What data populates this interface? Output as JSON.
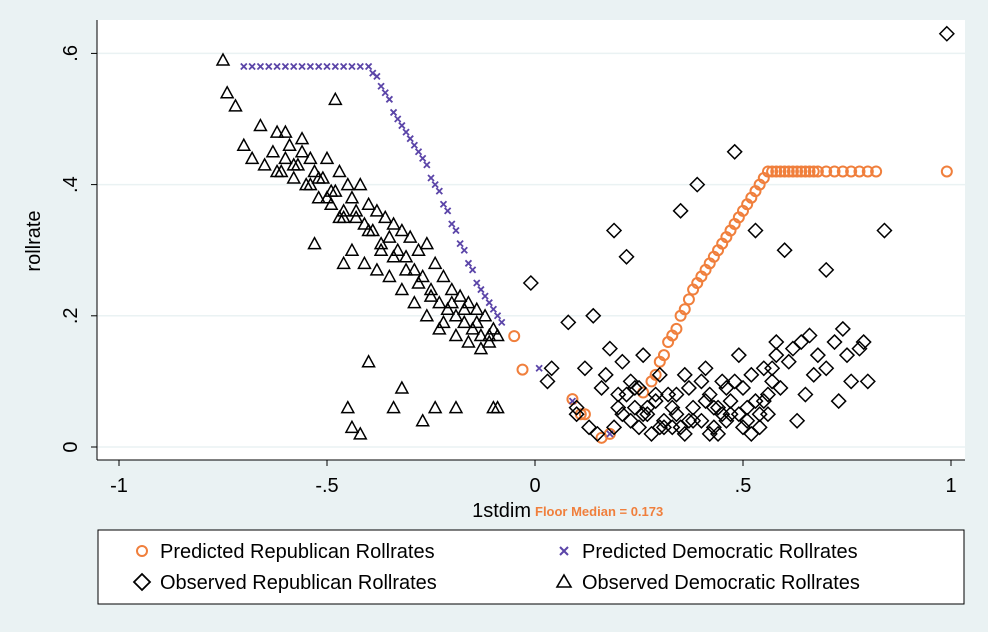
{
  "chart_data": {
    "type": "scatter",
    "xlabel": "1stdim",
    "ylabel": "rollrate",
    "xlim": [
      -1,
      1
    ],
    "ylim": [
      0,
      0.6
    ],
    "x_ticks": [
      -1,
      -0.5,
      0,
      0.5,
      1
    ],
    "x_tick_labels": [
      "-1",
      "-.5",
      "0",
      ".5",
      "1"
    ],
    "y_ticks": [
      0,
      0.2,
      0.4,
      0.6
    ],
    "y_tick_labels": [
      "0",
      ".2",
      ".4",
      ".6"
    ],
    "grid": true,
    "legend_position": "bottom",
    "annotation": {
      "text": "Floor Median = 0.173",
      "x": 0.173,
      "color": "#f07f3c"
    },
    "colors": {
      "republican_predicted": "#f07f3c",
      "democratic_predicted": "#5b45a8",
      "observed": "#000000",
      "background": "#eaf2f3",
      "plot_bg": "#ffffff"
    },
    "series": [
      {
        "name": "Predicted Republican Rollrates",
        "marker": "circle",
        "color": "#f07f3c",
        "x": [
          -0.05,
          -0.03,
          0.09,
          0.11,
          0.12,
          0.16,
          0.18,
          0.26,
          0.28,
          0.29,
          0.3,
          0.31,
          0.32,
          0.33,
          0.34,
          0.35,
          0.36,
          0.37,
          0.38,
          0.39,
          0.4,
          0.41,
          0.42,
          0.43,
          0.44,
          0.45,
          0.46,
          0.47,
          0.48,
          0.49,
          0.5,
          0.51,
          0.52,
          0.53,
          0.54,
          0.55,
          0.56,
          0.57,
          0.58,
          0.59,
          0.6,
          0.61,
          0.62,
          0.63,
          0.64,
          0.65,
          0.66,
          0.67,
          0.68,
          0.7,
          0.72,
          0.74,
          0.76,
          0.78,
          0.8,
          0.82,
          0.99
        ],
        "y": [
          0.169,
          0.118,
          0.073,
          0.05,
          0.05,
          0.014,
          0.02,
          0.083,
          0.1,
          0.11,
          0.13,
          0.14,
          0.16,
          0.17,
          0.18,
          0.2,
          0.21,
          0.225,
          0.24,
          0.25,
          0.26,
          0.27,
          0.28,
          0.29,
          0.3,
          0.31,
          0.32,
          0.33,
          0.34,
          0.35,
          0.36,
          0.37,
          0.38,
          0.39,
          0.4,
          0.41,
          0.42,
          0.42,
          0.42,
          0.42,
          0.42,
          0.42,
          0.42,
          0.42,
          0.42,
          0.42,
          0.42,
          0.42,
          0.42,
          0.42,
          0.42,
          0.42,
          0.42,
          0.42,
          0.42,
          0.42,
          0.42
        ]
      },
      {
        "name": "Predicted Democratic Rollrates",
        "marker": "x",
        "color": "#5b45a8",
        "x": [
          -0.7,
          -0.68,
          -0.66,
          -0.64,
          -0.62,
          -0.6,
          -0.58,
          -0.56,
          -0.54,
          -0.52,
          -0.5,
          -0.48,
          -0.46,
          -0.44,
          -0.42,
          -0.4,
          -0.39,
          -0.38,
          -0.37,
          -0.36,
          -0.35,
          -0.34,
          -0.33,
          -0.32,
          -0.31,
          -0.3,
          -0.29,
          -0.28,
          -0.27,
          -0.26,
          -0.25,
          -0.24,
          -0.23,
          -0.22,
          -0.21,
          -0.2,
          -0.19,
          -0.18,
          -0.17,
          -0.16,
          -0.15,
          -0.14,
          -0.13,
          -0.12,
          -0.11,
          -0.1,
          -0.09,
          -0.08,
          0.01,
          0.09,
          0.18
        ],
        "y": [
          0.58,
          0.58,
          0.58,
          0.58,
          0.58,
          0.58,
          0.58,
          0.58,
          0.58,
          0.58,
          0.58,
          0.58,
          0.58,
          0.58,
          0.58,
          0.58,
          0.57,
          0.565,
          0.55,
          0.54,
          0.53,
          0.51,
          0.5,
          0.49,
          0.48,
          0.47,
          0.46,
          0.45,
          0.44,
          0.43,
          0.41,
          0.4,
          0.39,
          0.37,
          0.36,
          0.34,
          0.33,
          0.31,
          0.3,
          0.28,
          0.27,
          0.25,
          0.24,
          0.23,
          0.22,
          0.21,
          0.2,
          0.19,
          0.12,
          0.07,
          0.02
        ]
      },
      {
        "name": "Observed Republican Rollrates",
        "marker": "diamond",
        "color": "#000000",
        "x": [
          -0.01,
          0.03,
          0.04,
          0.08,
          0.1,
          0.12,
          0.14,
          0.16,
          0.18,
          0.19,
          0.2,
          0.21,
          0.22,
          0.23,
          0.24,
          0.25,
          0.26,
          0.27,
          0.28,
          0.29,
          0.3,
          0.31,
          0.32,
          0.33,
          0.34,
          0.35,
          0.36,
          0.37,
          0.38,
          0.39,
          0.4,
          0.41,
          0.42,
          0.43,
          0.44,
          0.45,
          0.46,
          0.47,
          0.48,
          0.49,
          0.5,
          0.51,
          0.52,
          0.53,
          0.54,
          0.55,
          0.56,
          0.57,
          0.58,
          0.6,
          0.62,
          0.64,
          0.66,
          0.68,
          0.7,
          0.72,
          0.74,
          0.76,
          0.78,
          0.8,
          0.84,
          0.99,
          0.1,
          0.13,
          0.17,
          0.21,
          0.24,
          0.27,
          0.31,
          0.34,
          0.38,
          0.41,
          0.44,
          0.47,
          0.5,
          0.53,
          0.57,
          0.61,
          0.65,
          0.7,
          0.75,
          0.2,
          0.23,
          0.35,
          0.4,
          0.45,
          0.49,
          0.52,
          0.55,
          0.59,
          0.63,
          0.67,
          0.73,
          0.79,
          0.22,
          0.26,
          0.3,
          0.36,
          0.43,
          0.46,
          0.51,
          0.56,
          0.15,
          0.19,
          0.25,
          0.29,
          0.33,
          0.37,
          0.42,
          0.48,
          0.54,
          0.58
        ],
        "y": [
          0.25,
          0.1,
          0.12,
          0.19,
          0.06,
          0.12,
          0.2,
          0.09,
          0.15,
          0.33,
          0.08,
          0.05,
          0.29,
          0.1,
          0.06,
          0.03,
          0.14,
          0.05,
          0.02,
          0.07,
          0.11,
          0.04,
          0.08,
          0.03,
          0.05,
          0.36,
          0.02,
          0.09,
          0.06,
          0.4,
          0.04,
          0.12,
          0.08,
          0.03,
          0.06,
          0.1,
          0.04,
          0.07,
          0.45,
          0.05,
          0.09,
          0.06,
          0.11,
          0.33,
          0.03,
          0.12,
          0.08,
          0.1,
          0.16,
          0.3,
          0.15,
          0.16,
          0.17,
          0.14,
          0.27,
          0.16,
          0.18,
          0.1,
          0.15,
          0.1,
          0.33,
          0.63,
          0.05,
          0.03,
          0.11,
          0.13,
          0.09,
          0.06,
          0.03,
          0.08,
          0.04,
          0.07,
          0.02,
          0.05,
          0.03,
          0.07,
          0.12,
          0.13,
          0.08,
          0.12,
          0.14,
          0.06,
          0.04,
          0.03,
          0.1,
          0.05,
          0.14,
          0.02,
          0.07,
          0.09,
          0.04,
          0.11,
          0.07,
          0.16,
          0.08,
          0.05,
          0.03,
          0.11,
          0.06,
          0.09,
          0.04,
          0.05,
          0.02,
          0.03,
          0.09,
          0.08,
          0.06,
          0.04,
          0.02,
          0.1,
          0.05,
          0.14
        ]
      },
      {
        "name": "Observed Democratic Rollrates",
        "marker": "triangle",
        "color": "#000000",
        "x": [
          -0.75,
          -0.74,
          -0.72,
          -0.7,
          -0.68,
          -0.66,
          -0.65,
          -0.63,
          -0.62,
          -0.61,
          -0.6,
          -0.59,
          -0.58,
          -0.57,
          -0.56,
          -0.55,
          -0.54,
          -0.53,
          -0.52,
          -0.51,
          -0.5,
          -0.49,
          -0.48,
          -0.47,
          -0.46,
          -0.45,
          -0.44,
          -0.43,
          -0.42,
          -0.41,
          -0.4,
          -0.39,
          -0.38,
          -0.37,
          -0.36,
          -0.35,
          -0.34,
          -0.33,
          -0.32,
          -0.31,
          -0.3,
          -0.29,
          -0.28,
          -0.27,
          -0.26,
          -0.25,
          -0.24,
          -0.23,
          -0.22,
          -0.21,
          -0.2,
          -0.19,
          -0.18,
          -0.17,
          -0.16,
          -0.15,
          -0.14,
          -0.13,
          -0.12,
          -0.11,
          -0.1,
          -0.09,
          -0.6,
          -0.56,
          -0.52,
          -0.49,
          -0.46,
          -0.43,
          -0.4,
          -0.37,
          -0.34,
          -0.31,
          -0.28,
          -0.25,
          -0.22,
          -0.19,
          -0.16,
          -0.13,
          -0.58,
          -0.54,
          -0.5,
          -0.47,
          -0.44,
          -0.41,
          -0.38,
          -0.35,
          -0.32,
          -0.29,
          -0.26,
          -0.23,
          -0.2,
          -0.17,
          -0.14,
          -0.11,
          -0.45,
          -0.44,
          -0.42,
          -0.4,
          -0.34,
          -0.32,
          -0.27,
          -0.24,
          -0.19,
          -0.1,
          -0.09,
          -0.48,
          -0.46,
          -0.62,
          -0.53
        ],
        "y": [
          0.59,
          0.54,
          0.52,
          0.46,
          0.44,
          0.49,
          0.43,
          0.45,
          0.48,
          0.42,
          0.44,
          0.46,
          0.41,
          0.43,
          0.47,
          0.4,
          0.44,
          0.42,
          0.38,
          0.41,
          0.44,
          0.37,
          0.39,
          0.42,
          0.35,
          0.4,
          0.38,
          0.36,
          0.4,
          0.34,
          0.37,
          0.33,
          0.36,
          0.31,
          0.35,
          0.32,
          0.34,
          0.3,
          0.33,
          0.29,
          0.32,
          0.27,
          0.3,
          0.26,
          0.31,
          0.24,
          0.28,
          0.22,
          0.26,
          0.21,
          0.24,
          0.2,
          0.23,
          0.19,
          0.22,
          0.18,
          0.21,
          0.17,
          0.2,
          0.16,
          0.18,
          0.17,
          0.48,
          0.45,
          0.41,
          0.39,
          0.36,
          0.35,
          0.33,
          0.3,
          0.29,
          0.27,
          0.25,
          0.23,
          0.19,
          0.17,
          0.16,
          0.15,
          0.43,
          0.4,
          0.38,
          0.35,
          0.3,
          0.28,
          0.27,
          0.26,
          0.24,
          0.22,
          0.2,
          0.18,
          0.22,
          0.21,
          0.19,
          0.17,
          0.06,
          0.03,
          0.02,
          0.13,
          0.06,
          0.09,
          0.04,
          0.06,
          0.06,
          0.06,
          0.06,
          0.53,
          0.28,
          0.42,
          0.31
        ]
      }
    ]
  },
  "legend": {
    "items": [
      {
        "label": "Predicted Republican Rollrates"
      },
      {
        "label": "Predicted Democratic Rollrates"
      },
      {
        "label": "Observed Republican Rollrates"
      },
      {
        "label": "Observed Democratic Rollrates"
      }
    ]
  }
}
